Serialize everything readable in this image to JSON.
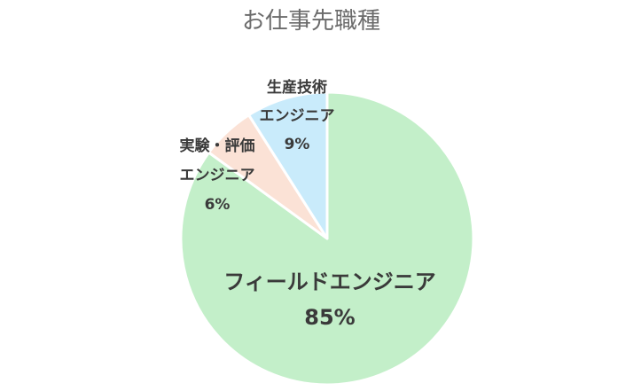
{
  "chart_data": {
    "type": "pie",
    "title": "お仕事先職種",
    "slices": [
      {
        "label": "フィールドエンジニア",
        "label_lines": [
          "フィールドエンジニア"
        ],
        "value": 85,
        "value_label": "85%",
        "color": "#c3efc9"
      },
      {
        "label": "実験・評価エンジニア",
        "label_lines": [
          "実験・評価",
          "エンジニア"
        ],
        "value": 6,
        "value_label": "6%",
        "color": "#fbe2d6"
      },
      {
        "label": "生産技術エンジニア",
        "label_lines": [
          "生産技術",
          "エンジニア"
        ],
        "value": 9,
        "value_label": "9%",
        "color": "#c9ebfb"
      }
    ],
    "start_angle_deg": 0,
    "direction": "clockwise"
  }
}
